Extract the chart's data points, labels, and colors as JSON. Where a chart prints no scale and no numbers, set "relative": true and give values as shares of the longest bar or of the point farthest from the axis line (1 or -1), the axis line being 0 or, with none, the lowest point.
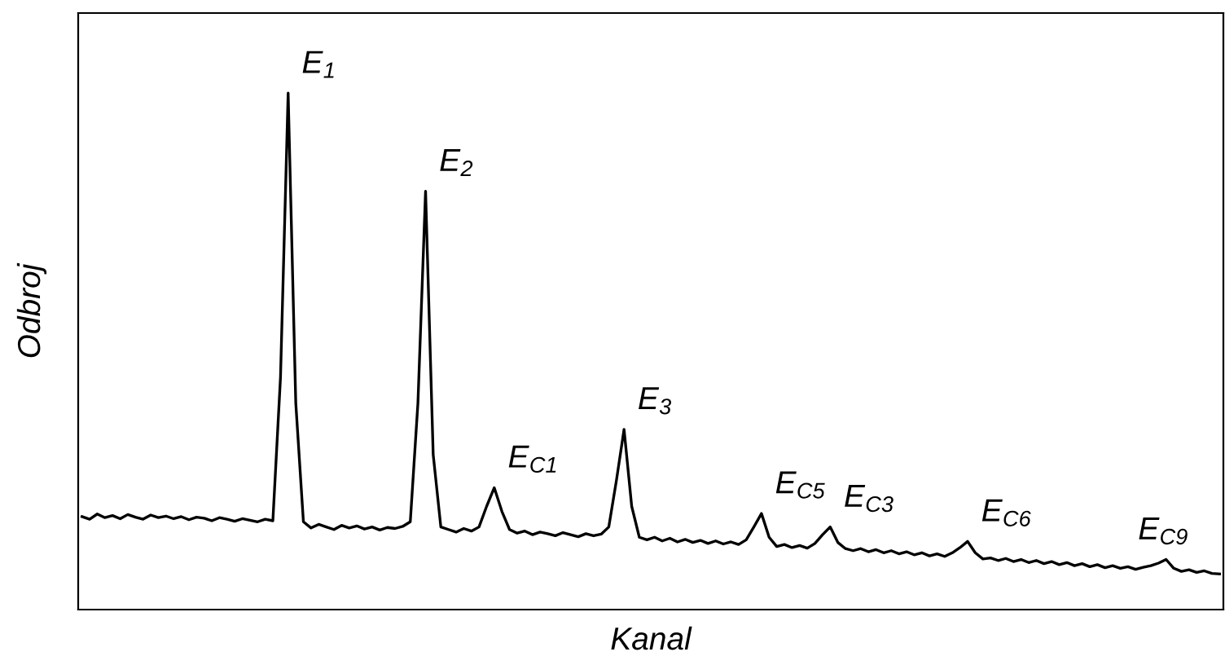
{
  "chart_data": {
    "type": "line",
    "relative": true,
    "xlabel": "Kanal",
    "ylabel": "Odbroj",
    "color": "#000000",
    "marker": "none",
    "grid": false,
    "legend": false,
    "categories": [
      null,
      null,
      null,
      null,
      null,
      null,
      null,
      null,
      null,
      null,
      null,
      null,
      null,
      null,
      null,
      null,
      null,
      null,
      null,
      null,
      null,
      null,
      null,
      null,
      null,
      null,
      null,
      null,
      null,
      null,
      null,
      null,
      null,
      null,
      null,
      null,
      null,
      null,
      null,
      null,
      null,
      null,
      null,
      null,
      null,
      null,
      null,
      null,
      null,
      null,
      null,
      null,
      null,
      null,
      null,
      null,
      null,
      null,
      null,
      null,
      null,
      null,
      null,
      null,
      null,
      null,
      null,
      null,
      null,
      null,
      null,
      null,
      null,
      null,
      null,
      null,
      null,
      null,
      null,
      null,
      null,
      null,
      null,
      null,
      null,
      null,
      null,
      null,
      null,
      null,
      null,
      null,
      null,
      null,
      null,
      null,
      null,
      null,
      null,
      null,
      null,
      null,
      null,
      null,
      null,
      null,
      null,
      null,
      null,
      null,
      null,
      null,
      null,
      null,
      null,
      null,
      null,
      null,
      null,
      null,
      null,
      null,
      null,
      null,
      null,
      null,
      null,
      null,
      null,
      null,
      null,
      null,
      null,
      null,
      null,
      null,
      null,
      null,
      null,
      null,
      null,
      null,
      null,
      null,
      null,
      null,
      null,
      null,
      null,
      null
    ],
    "values": [
      0.18,
      0.175,
      0.185,
      0.178,
      0.182,
      0.176,
      0.184,
      0.179,
      0.175,
      0.183,
      0.178,
      0.181,
      0.176,
      0.18,
      0.174,
      0.179,
      0.177,
      0.172,
      0.178,
      0.175,
      0.171,
      0.176,
      0.173,
      0.17,
      0.175,
      0.172,
      0.45,
      1.0,
      0.4,
      0.17,
      0.158,
      0.165,
      0.16,
      0.155,
      0.163,
      0.158,
      0.162,
      0.156,
      0.16,
      0.154,
      0.159,
      0.157,
      0.161,
      0.17,
      0.4,
      0.81,
      0.3,
      0.16,
      0.155,
      0.15,
      0.157,
      0.152,
      0.16,
      0.2,
      0.236,
      0.19,
      0.155,
      0.148,
      0.152,
      0.145,
      0.15,
      0.147,
      0.143,
      0.149,
      0.145,
      0.141,
      0.147,
      0.143,
      0.146,
      0.16,
      0.25,
      0.349,
      0.2,
      0.14,
      0.135,
      0.14,
      0.133,
      0.138,
      0.131,
      0.136,
      0.13,
      0.134,
      0.128,
      0.133,
      0.127,
      0.131,
      0.126,
      0.135,
      0.16,
      0.186,
      0.14,
      0.122,
      0.126,
      0.12,
      0.124,
      0.119,
      0.128,
      0.145,
      0.16,
      0.13,
      0.118,
      0.114,
      0.118,
      0.112,
      0.116,
      0.11,
      0.114,
      0.108,
      0.112,
      0.106,
      0.11,
      0.104,
      0.108,
      0.103,
      0.11,
      0.12,
      0.132,
      0.11,
      0.098,
      0.1,
      0.095,
      0.099,
      0.093,
      0.097,
      0.091,
      0.095,
      0.089,
      0.093,
      0.087,
      0.091,
      0.085,
      0.089,
      0.083,
      0.087,
      0.081,
      0.085,
      0.08,
      0.083,
      0.078,
      0.082,
      0.085,
      0.09,
      0.097,
      0.08,
      0.074,
      0.077,
      0.072,
      0.075,
      0.07,
      0.069
    ],
    "annotations": [
      "E$_{1}$",
      "E$_{2}$",
      "E$_{C1}$",
      "E$_{3}$",
      "E$_{C5}$",
      "E$_{C3}$",
      "E$_{C6}$",
      "E$_{C9}$"
    ]
  }
}
